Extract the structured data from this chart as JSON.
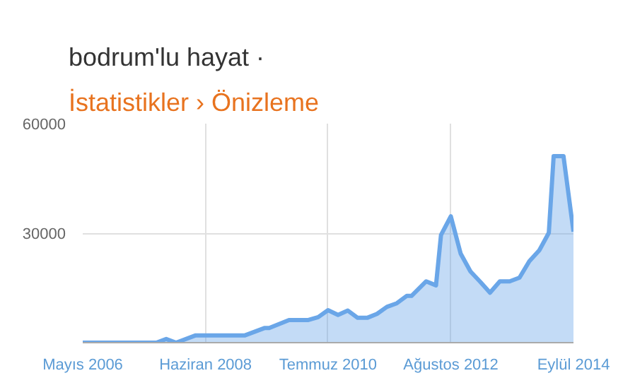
{
  "chart_data": {
    "type": "area",
    "title": "bodrum'lu hayat ·",
    "subtitle": "İstatistikler › Önizleme",
    "x": [
      "2006-05",
      "2007-08",
      "2007-10",
      "2007-12",
      "2008-04",
      "2009-02",
      "2009-06",
      "2009-07",
      "2009-11",
      "2010-03",
      "2010-05",
      "2010-07",
      "2010-09",
      "2010-11",
      "2011-01",
      "2011-03",
      "2011-05",
      "2011-07",
      "2011-09",
      "2011-11",
      "2011-12",
      "2012-03",
      "2012-05",
      "2012-06",
      "2012-08",
      "2012-10",
      "2012-12",
      "2013-02",
      "2013-04",
      "2013-06",
      "2013-08",
      "2013-10",
      "2013-12",
      "2014-02",
      "2014-04",
      "2014-05",
      "2014-07",
      "2014-09"
    ],
    "series": [
      {
        "color": "#6aa6e8",
        "values": [
          0,
          0,
          1000,
          0,
          2000,
          2000,
          4000,
          4000,
          6200,
          6200,
          7000,
          8900,
          7600,
          8800,
          6800,
          6800,
          7900,
          9800,
          10800,
          12800,
          12800,
          16800,
          15700,
          29500,
          34600,
          24400,
          19500,
          16600,
          13700,
          16800,
          16800,
          17800,
          22300,
          25300,
          30100,
          51100,
          51100,
          30400
        ]
      }
    ],
    "xlim": [
      "2006-05",
      "2014-09"
    ],
    "xticks": [
      {
        "value": "2006-05",
        "label": "Mayıs 2006"
      },
      {
        "value": "2008-06",
        "label": "Haziran 2008"
      },
      {
        "value": "2010-07",
        "label": "Temmuz 2010"
      },
      {
        "value": "2012-08",
        "label": "Ağustos 2012"
      },
      {
        "value": "2014-09",
        "label": "Eylül 2014"
      }
    ],
    "ylim": [
      0,
      60000
    ],
    "yticks": [
      {
        "value": 0,
        "label": null
      },
      30000,
      60000
    ],
    "grid": true,
    "marker": "none",
    "line_style": "solid"
  }
}
